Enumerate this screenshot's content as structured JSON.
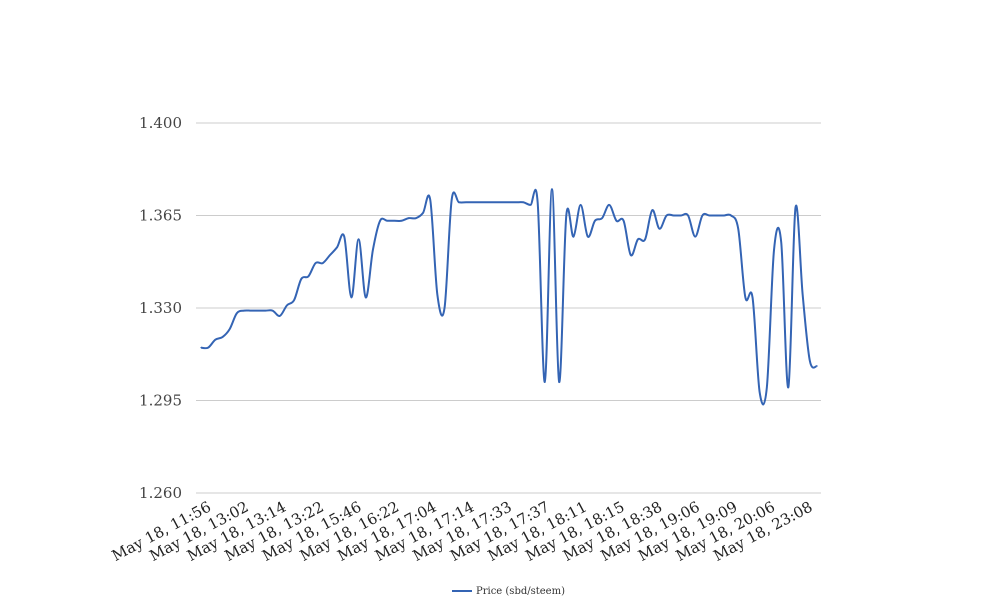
{
  "chart_data": {
    "type": "line",
    "title": "",
    "xlabel": "",
    "ylabel": "",
    "ylim": [
      1.26,
      1.4
    ],
    "yticks": [
      "1.400",
      "1.365",
      "1.330",
      "1.295",
      "1.260"
    ],
    "grid": true,
    "legend_placement": "bottom-center",
    "x_tick_labels": [
      "May 18, 11:56",
      "May 18, 13:02",
      "May 18, 13:14",
      "May 18, 13:22",
      "May 18, 15:46",
      "May 18, 16:22",
      "May 18, 17:04",
      "May 18, 17:14",
      "May 18, 17:33",
      "May 18, 17:37",
      "May 18, 18:11",
      "May 18, 18:15",
      "May 18, 18:38",
      "May 18, 19:06",
      "May 18, 19:09",
      "May 18, 20:06",
      "May 18, 23:08"
    ],
    "series": [
      {
        "name": "Price (sbd/steem)",
        "color": "#3464b4",
        "values": [
          1.315,
          1.315,
          1.318,
          1.319,
          1.322,
          1.328,
          1.329,
          1.329,
          1.329,
          1.329,
          1.329,
          1.327,
          1.331,
          1.333,
          1.341,
          1.342,
          1.347,
          1.347,
          1.35,
          1.353,
          1.357,
          1.334,
          1.356,
          1.334,
          1.352,
          1.363,
          1.363,
          1.363,
          1.363,
          1.364,
          1.364,
          1.366,
          1.371,
          1.335,
          1.33,
          1.371,
          1.37,
          1.37,
          1.37,
          1.37,
          1.37,
          1.37,
          1.37,
          1.37,
          1.37,
          1.37,
          1.369,
          1.37,
          1.302,
          1.375,
          1.302,
          1.365,
          1.357,
          1.369,
          1.357,
          1.363,
          1.364,
          1.369,
          1.363,
          1.363,
          1.35,
          1.356,
          1.356,
          1.367,
          1.36,
          1.365,
          1.365,
          1.365,
          1.365,
          1.357,
          1.365,
          1.365,
          1.365,
          1.365,
          1.365,
          1.36,
          1.334,
          1.334,
          1.298,
          1.3,
          1.352,
          1.355,
          1.3,
          1.368,
          1.335,
          1.31,
          1.308
        ]
      }
    ]
  }
}
